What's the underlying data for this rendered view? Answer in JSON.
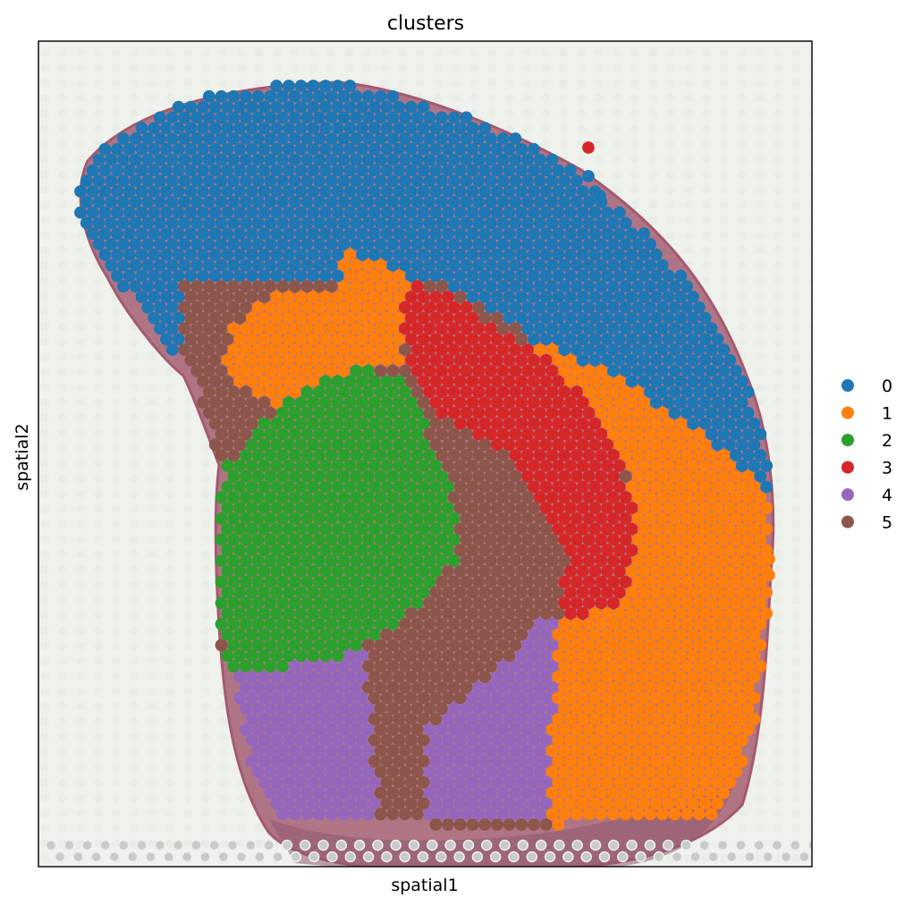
{
  "chart_data": {
    "type": "scatter",
    "title": "clusters",
    "xlabel": "spatial1",
    "ylabel": "spatial2",
    "xticks": [],
    "yticks": [],
    "grid": false,
    "legend": {
      "placement": "right",
      "entries": [
        {
          "label": "0",
          "color": "#1f77b4"
        },
        {
          "label": "1",
          "color": "#ff7f0e"
        },
        {
          "label": "2",
          "color": "#2ca02c"
        },
        {
          "label": "3",
          "color": "#d62728"
        },
        {
          "label": "4",
          "color": "#9467bd"
        },
        {
          "label": "5",
          "color": "#8c564b"
        }
      ]
    },
    "background_image": "tissue-histology-section"
  }
}
